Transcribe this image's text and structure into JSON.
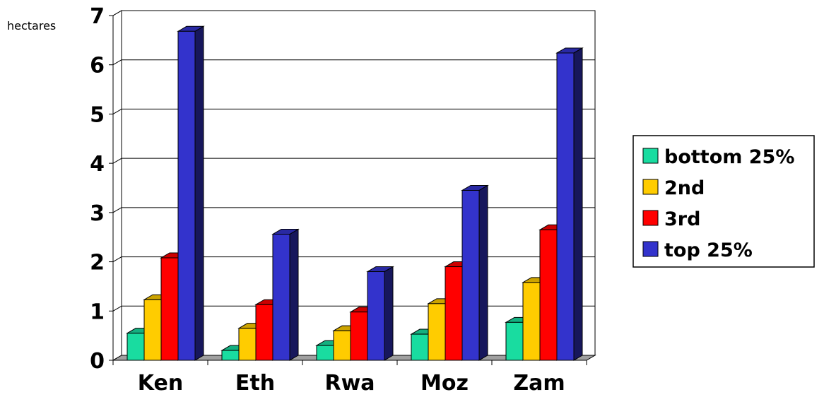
{
  "chart_data": {
    "type": "bar",
    "ylabel": "hectares",
    "ylim": [
      0,
      7
    ],
    "yticks": [
      "0",
      "1",
      "2",
      "3",
      "4",
      "5",
      "6",
      "7"
    ],
    "categories": [
      "Ken",
      "Eth",
      "Rwa",
      "Moz",
      "Zam"
    ],
    "series": [
      {
        "name": "bottom 25%",
        "color": "#19dca0",
        "values": [
          0.55,
          0.2,
          0.3,
          0.53,
          0.77
        ]
      },
      {
        "name": "2nd",
        "color": "#ffcc00",
        "values": [
          1.23,
          0.65,
          0.6,
          1.15,
          1.58
        ]
      },
      {
        "name": "3rd",
        "color": "#ff0000",
        "values": [
          2.08,
          1.13,
          0.98,
          1.9,
          2.65
        ]
      },
      {
        "name": "top 25%",
        "color": "#3333cc",
        "values": [
          6.68,
          2.56,
          1.8,
          3.45,
          6.24
        ]
      }
    ],
    "grid": true,
    "legend_position": "right",
    "style": "3d-columns"
  }
}
